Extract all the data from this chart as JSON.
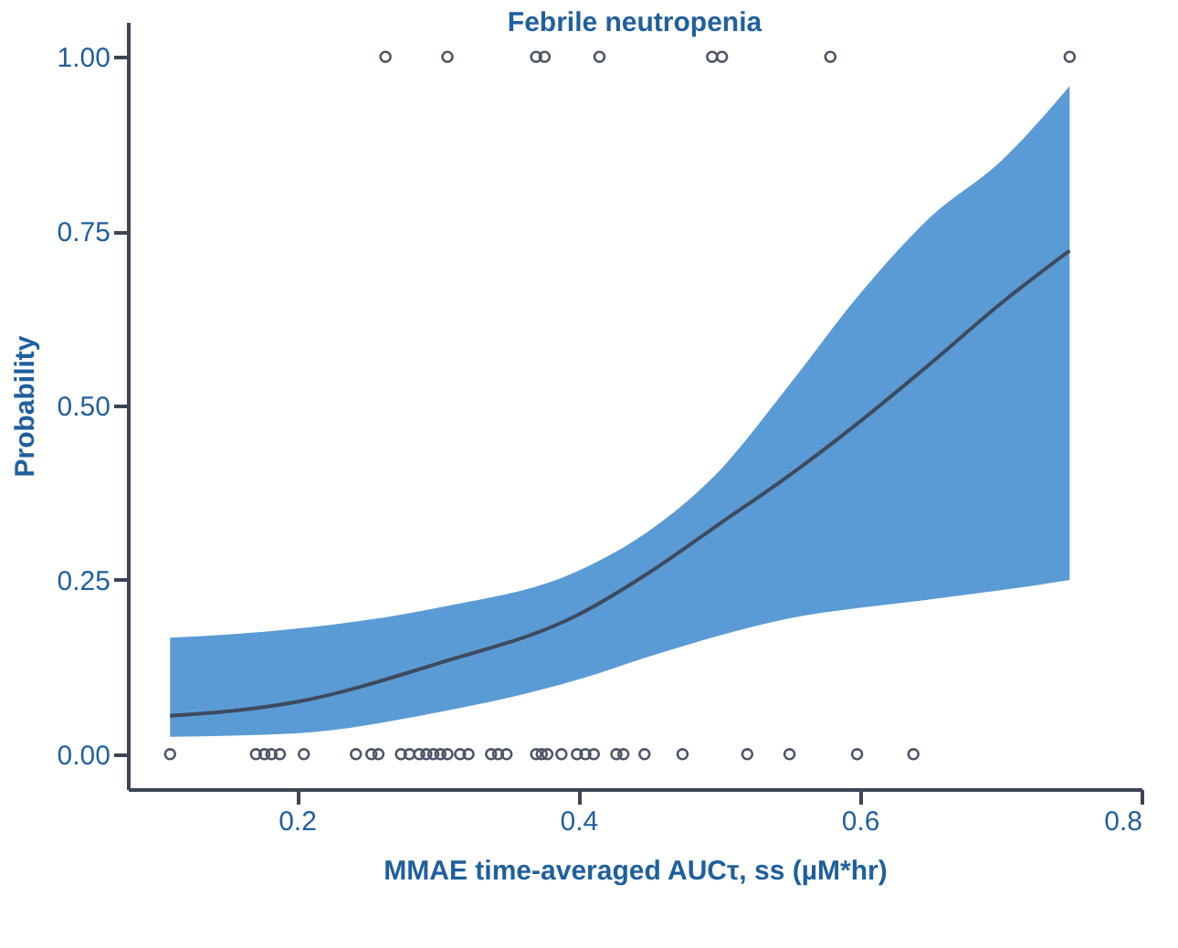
{
  "chart_data": {
    "type": "line",
    "title": "Febrile neutropenia",
    "xlabel": "MMAE time-averaged AUCτ, ss (µM*hr)",
    "ylabel": "Probability",
    "xlim": [
      0.08,
      0.8
    ],
    "xticks": [
      0.2,
      0.4,
      0.6,
      0.8
    ],
    "ylim": [
      -0.05,
      1.05
    ],
    "yticks": [
      {
        "value": 0,
        "label": "0.00"
      },
      {
        "value": 0.25,
        "label": "0.25"
      },
      {
        "value": 0.5,
        "label": "0.50"
      },
      {
        "value": 0.75,
        "label": "0.75"
      },
      {
        "value": 1,
        "label": "1.00"
      }
    ],
    "grid": false,
    "series": [
      {
        "color": "#3d4a5e",
        "x": [
          0.11,
          0.2,
          0.3,
          0.4,
          0.45,
          0.5,
          0.55,
          0.6,
          0.65,
          0.7,
          0.749
        ],
        "values": [
          0.055,
          0.075,
          0.13,
          0.2,
          0.26,
          0.33,
          0.4,
          0.477,
          0.56,
          0.646,
          0.722
        ],
        "lower": [
          0.025,
          0.03,
          0.06,
          0.107,
          0.14,
          0.17,
          0.195,
          0.21,
          0.222,
          0.235,
          0.25
        ],
        "upper": [
          0.167,
          0.18,
          0.21,
          0.263,
          0.32,
          0.406,
          0.53,
          0.66,
          0.77,
          0.85,
          0.958
        ]
      },
      {
        "type": "scatter",
        "color": "#4d5566",
        "marker": "circle",
        "x": [
          0.263,
          0.307,
          0.37,
          0.376,
          0.415,
          0.495,
          0.502,
          0.579,
          0.749
        ],
        "values": [
          1,
          1,
          1,
          1,
          1,
          1,
          1,
          1,
          1
        ]
      },
      {
        "type": "scatter",
        "color": "#4d5566",
        "marker": "circle",
        "x": [
          0.11,
          0.171,
          0.177,
          0.182,
          0.188,
          0.205,
          0.242,
          0.253,
          0.258,
          0.274,
          0.28,
          0.287,
          0.292,
          0.297,
          0.302,
          0.307,
          0.316,
          0.322,
          0.338,
          0.343,
          0.349,
          0.37,
          0.374,
          0.378,
          0.388,
          0.399,
          0.405,
          0.411,
          0.427,
          0.432,
          0.447,
          0.474,
          0.52,
          0.55,
          0.598,
          0.638
        ],
        "values": [
          0,
          0,
          0,
          0,
          0,
          0,
          0,
          0,
          0,
          0,
          0,
          0,
          0,
          0,
          0,
          0,
          0,
          0,
          0,
          0,
          0,
          0,
          0,
          0,
          0,
          0,
          0,
          0,
          0,
          0,
          0,
          0,
          0,
          0,
          0,
          0
        ]
      }
    ]
  }
}
